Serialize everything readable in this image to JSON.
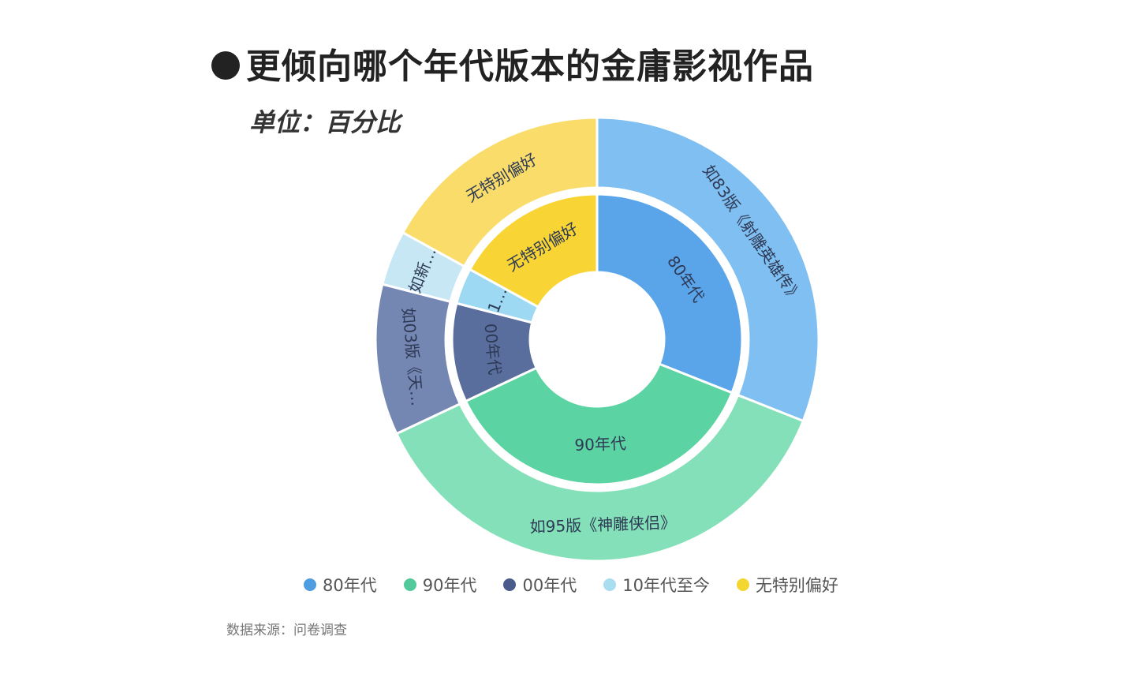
{
  "chart_data": {
    "type": "sunburst",
    "title": "更倾向哪个年代版本的金庸影视作品",
    "subtitle": "单位：百分比",
    "source": "数据来源：问卷调查",
    "legend_placement": "bottom",
    "legend": [
      {
        "label": "80年代",
        "color": "#4d9de0"
      },
      {
        "label": "90年代",
        "color": "#52c99a"
      },
      {
        "label": "00年代",
        "color": "#4a5a8a"
      },
      {
        "label": "10年代至今",
        "color": "#a8def0"
      },
      {
        "label": "无特别偏好",
        "color": "#f3d630"
      }
    ],
    "series": [
      {
        "inner_label": "80年代",
        "outer_label": "如83版《射雕英雄传》",
        "value": 31,
        "inner_color": "#5aa5ea",
        "outer_color": "#80bff1"
      },
      {
        "inner_label": "90年代",
        "outer_label": "如95版《神雕侠侣》",
        "value": 37,
        "inner_color": "#5bd3a2",
        "outer_color": "#84e0b8"
      },
      {
        "inner_label": "00年代",
        "outer_label": "如03版《天…",
        "value": 11,
        "inner_color": "#5a6e9e",
        "outer_color": "#7486b2"
      },
      {
        "inner_label": "1…",
        "outer_label": "如新…",
        "value": 4,
        "inner_color": "#9dd9f3",
        "outer_color": "#c8e7f5"
      },
      {
        "inner_label": "无特别偏好",
        "outer_label": "无特别偏好",
        "value": 17,
        "inner_color": "#f8d535",
        "outer_color": "#f9dc6a"
      }
    ]
  }
}
